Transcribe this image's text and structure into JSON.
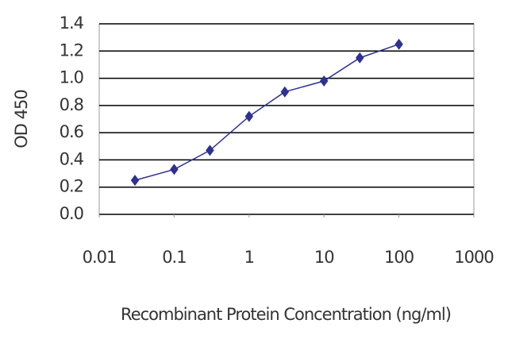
{
  "chart_data": {
    "type": "scatter",
    "xlabel": "Recombinant Protein Concentration (ng/ml)",
    "ylabel": "OD 450",
    "xscale": "log",
    "x": [
      0.03,
      0.1,
      0.3,
      1,
      3,
      10,
      30,
      100
    ],
    "series": [
      {
        "color": "#2e3192",
        "values": [
          0.25,
          0.33,
          0.47,
          0.72,
          0.9,
          0.98,
          1.15,
          1.25
        ]
      }
    ],
    "xlim": [
      0.01,
      1000
    ],
    "xticks": [
      0.01,
      0.1,
      1,
      10,
      100,
      1000
    ],
    "ylim": [
      0,
      1.4
    ],
    "yticks": [
      {
        "value": 0,
        "label": "0.0"
      },
      0.2,
      0.4,
      0.6,
      0.8,
      {
        "value": 1,
        "label": "1.0"
      },
      1.2,
      1.4
    ],
    "grid": true
  }
}
